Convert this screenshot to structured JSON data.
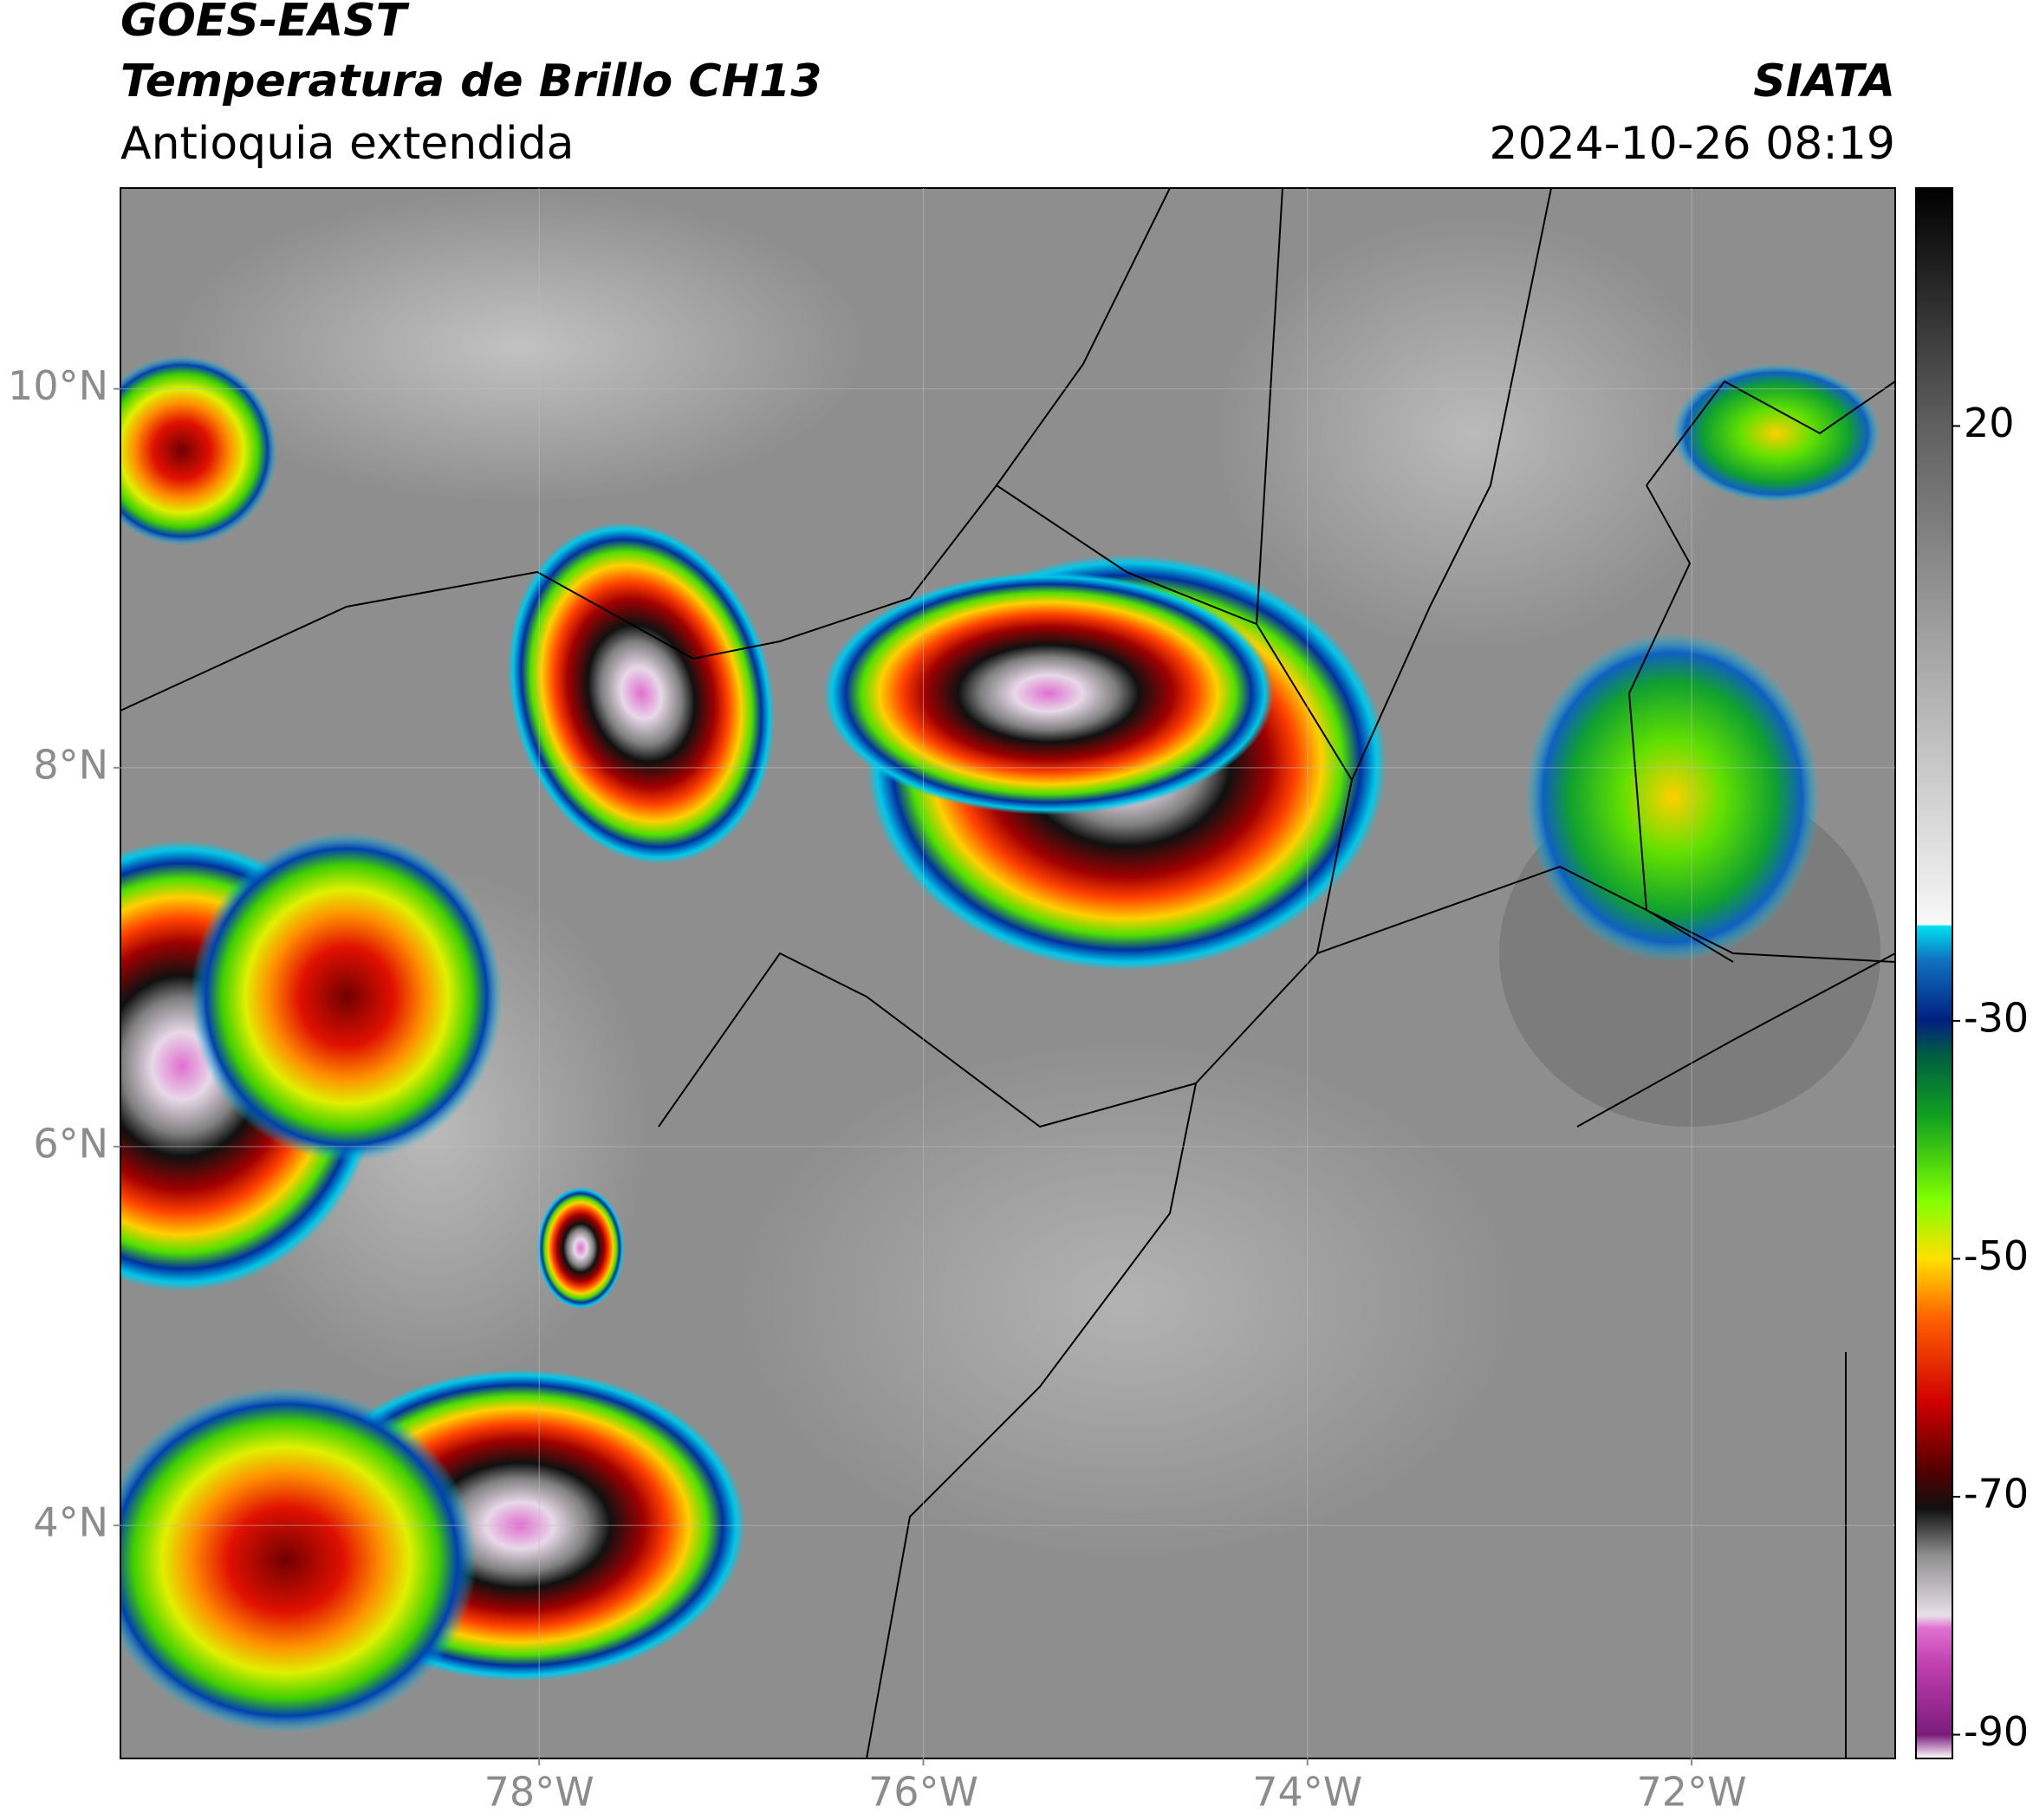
{
  "header": {
    "satellite": "GOES-EAST",
    "product": "Temperatura de Brillo CH13",
    "region": "Antioquia extendida",
    "agency": "SIATA",
    "datetime": "2024-10-26 08:19"
  },
  "map": {
    "xlim": [
      -80.18,
      -70.94
    ],
    "ylim": [
      2.77,
      11.06
    ],
    "xticks": [
      {
        "value": -78,
        "label": "78°W"
      },
      {
        "value": -76,
        "label": "76°W"
      },
      {
        "value": -74,
        "label": "74°W"
      },
      {
        "value": -72,
        "label": "72°W"
      }
    ],
    "yticks": [
      {
        "value": 4,
        "label": "4°N"
      },
      {
        "value": 6,
        "label": "6°N"
      },
      {
        "value": 8,
        "label": "8°N"
      },
      {
        "value": 10,
        "label": "10°N"
      }
    ],
    "grid": true
  },
  "colorbar": {
    "lim": [
      -92,
      40
    ],
    "ticks": [
      -90,
      -70,
      -50,
      -30,
      20
    ]
  }
}
